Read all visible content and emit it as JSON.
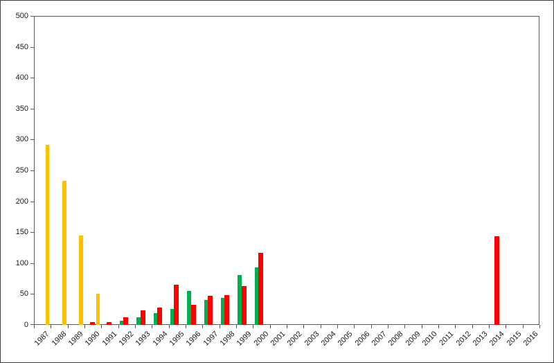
{
  "chart_data": {
    "type": "bar",
    "title": "",
    "legend_position": "none",
    "grid": false,
    "categories": [
      "1987",
      "1988",
      "1989",
      "1990",
      "1991",
      "1992",
      "1993",
      "1994",
      "1995",
      "1996",
      "1997",
      "1998",
      "1999",
      "2000",
      "2001",
      "2002",
      "2003",
      "2004",
      "2005",
      "2006",
      "2007",
      "2008",
      "2009",
      "2010",
      "2011",
      "2012",
      "2013",
      "2014",
      "2015",
      "2016"
    ],
    "series": [
      {
        "name": "yellow",
        "color": "#FFC000",
        "values": [
          292,
          233,
          145,
          50,
          null,
          null,
          null,
          null,
          null,
          null,
          null,
          null,
          null,
          null,
          null,
          null,
          null,
          null,
          null,
          null,
          null,
          null,
          null,
          null,
          null,
          null,
          null,
          null,
          null,
          null
        ]
      },
      {
        "name": "green",
        "color": "#00B050",
        "values": [
          null,
          null,
          null,
          null,
          null,
          7,
          12,
          19,
          26,
          55,
          40,
          44,
          81,
          93,
          null,
          null,
          null,
          null,
          null,
          null,
          null,
          null,
          null,
          null,
          null,
          null,
          null,
          null,
          null,
          null
        ]
      },
      {
        "name": "red",
        "color": "#FF0000",
        "values": [
          null,
          null,
          null,
          4,
          4,
          12,
          24,
          28,
          65,
          33,
          47,
          48,
          63,
          117,
          null,
          null,
          null,
          null,
          null,
          null,
          null,
          null,
          null,
          null,
          null,
          null,
          null,
          143,
          null,
          null
        ]
      }
    ],
    "xlabel": "",
    "ylabel": "",
    "ylim": [
      0,
      500
    ],
    "ytick_step": 50,
    "y_tick_labels": [
      "500",
      "450",
      "400",
      "350",
      "300",
      "250",
      "200",
      "150",
      "100",
      "50",
      "0"
    ]
  },
  "style": {
    "axis_color": "#595959",
    "text_color": "#1a1a1a",
    "background": "#ffffff"
  }
}
